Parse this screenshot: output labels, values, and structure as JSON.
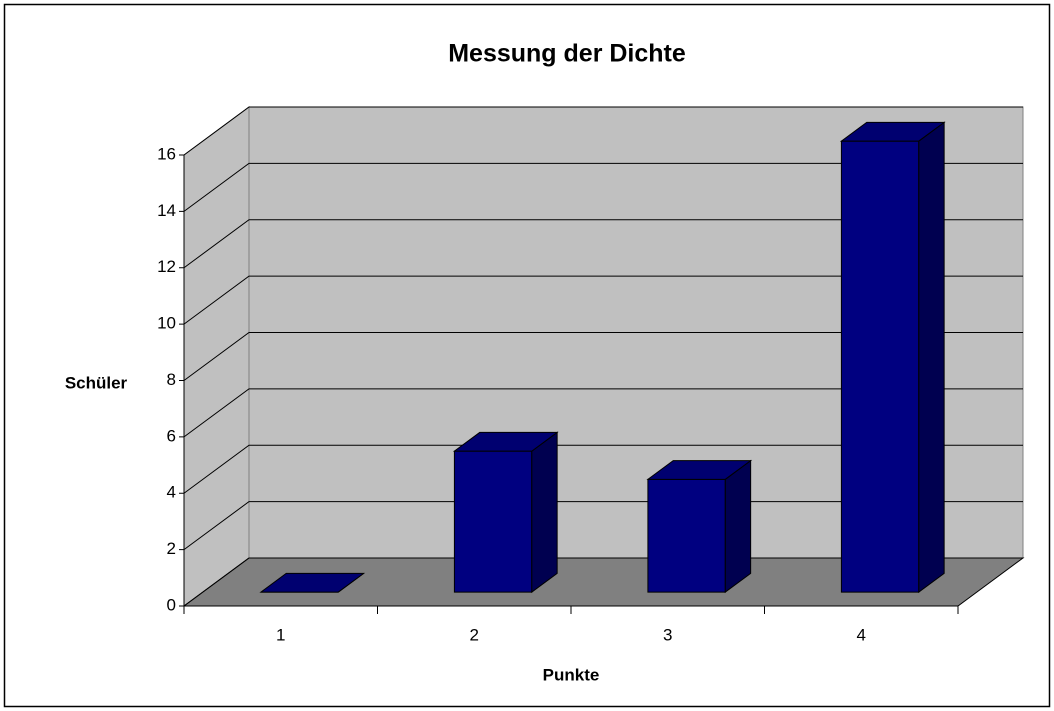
{
  "chart_data": {
    "type": "bar3d",
    "title": "Messung der Dichte",
    "x_label": "Punkte",
    "y_label": "Schüler",
    "categories": [
      "1",
      "2",
      "3",
      "4"
    ],
    "values": [
      0,
      5,
      4,
      16
    ],
    "color": "#000080",
    "ylim": [
      0,
      16
    ],
    "yticks": [
      0,
      2,
      4,
      6,
      8,
      10,
      12,
      14,
      16
    ],
    "grid": true
  }
}
